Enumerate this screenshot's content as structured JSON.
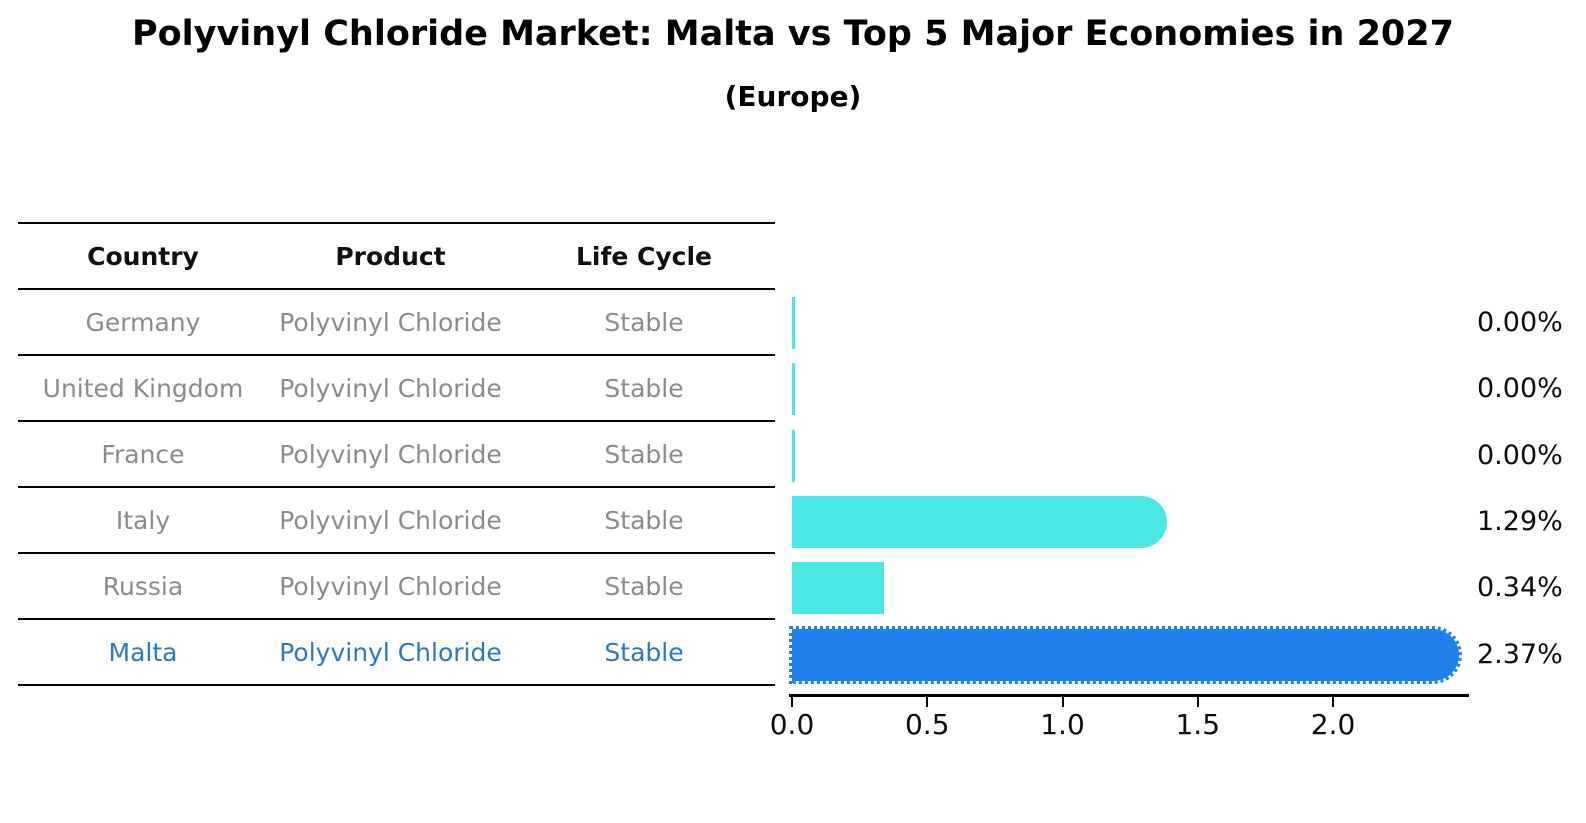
{
  "title": "Polyvinyl Chloride Market: Malta vs Top 5 Major Economies in 2027",
  "subtitle": "(Europe)",
  "table": {
    "headers": [
      "Country",
      "Product",
      "Life Cycle"
    ],
    "highlight_text_color": "#2878cb",
    "rows": [
      {
        "country": "Germany",
        "product": "Polyvinyl Chloride",
        "life_cycle": "Stable",
        "highlight": false
      },
      {
        "country": "United Kingdom",
        "product": "Polyvinyl Chloride",
        "life_cycle": "Stable",
        "highlight": false
      },
      {
        "country": "France",
        "product": "Polyvinyl Chloride",
        "life_cycle": "Stable",
        "highlight": false
      },
      {
        "country": "Italy",
        "product": "Polyvinyl Chloride",
        "life_cycle": "Stable",
        "highlight": false
      },
      {
        "country": "Russia",
        "product": "Polyvinyl Chloride",
        "life_cycle": "Stable",
        "highlight": false
      },
      {
        "country": "Malta",
        "product": "Polyvinyl Chloride",
        "life_cycle": "Stable",
        "highlight": true
      }
    ]
  },
  "chart_data": {
    "type": "bar",
    "orientation": "horizontal",
    "title": "Polyvinyl Chloride Market: Malta vs Top 5 Major Economies in 2027 (Europe)",
    "categories": [
      "Germany",
      "United Kingdom",
      "France",
      "Italy",
      "Russia",
      "Malta"
    ],
    "values": [
      0.0,
      0.0,
      0.0,
      1.29,
      0.34,
      2.37
    ],
    "value_labels": [
      "0.00%",
      "0.00%",
      "0.00%",
      "1.29%",
      "0.34%",
      "2.37%"
    ],
    "unit": "%",
    "x_ticks": [
      "0.0",
      "0.5",
      "1.0",
      "1.5",
      "2.0"
    ],
    "xlim": [
      0,
      2.5
    ],
    "grid": false,
    "legend": false,
    "bar_color": "#4ae8e4",
    "highlight_color": "#1e80ea",
    "highlight_index": 5
  }
}
